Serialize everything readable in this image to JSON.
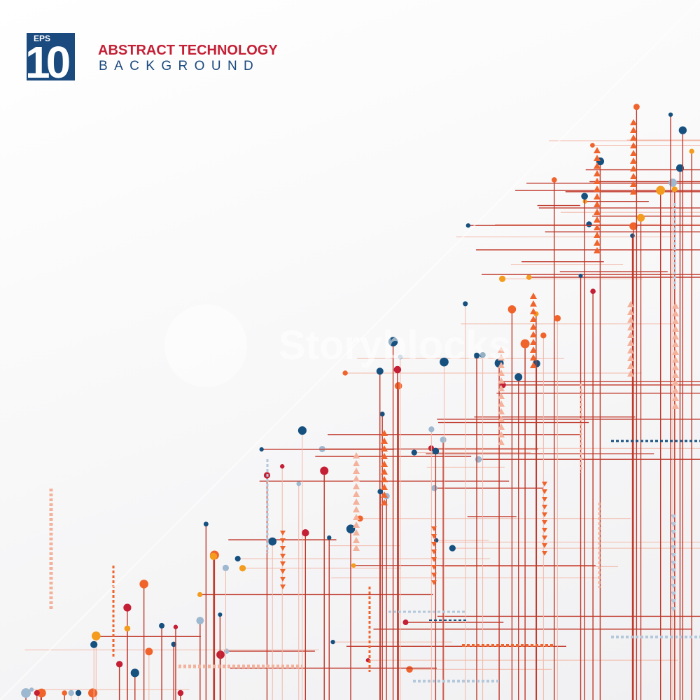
{
  "badge": {
    "eps": "EPS",
    "number": "10"
  },
  "title": {
    "line1": "ABSTRACT TECHNOLOGY",
    "line2": "BACKGROUND"
  },
  "watermark": "Storyblocks",
  "colors": {
    "line_red": "#c0392b",
    "line_light": "#f2b8a8",
    "dot_navy": "#15507f",
    "dot_lightblue": "#9db8cf",
    "dot_red": "#c41f35",
    "dot_orange": "#f0642c",
    "dot_yellow": "#f39c1e",
    "triangle_orange": "#f0642c",
    "triangle_light": "#f4b29c",
    "dash_navy": "#15507f",
    "dash_lightblue": "#b3c8da",
    "badge_blue": "#1b4a7e",
    "title_red": "#c41f35"
  }
}
